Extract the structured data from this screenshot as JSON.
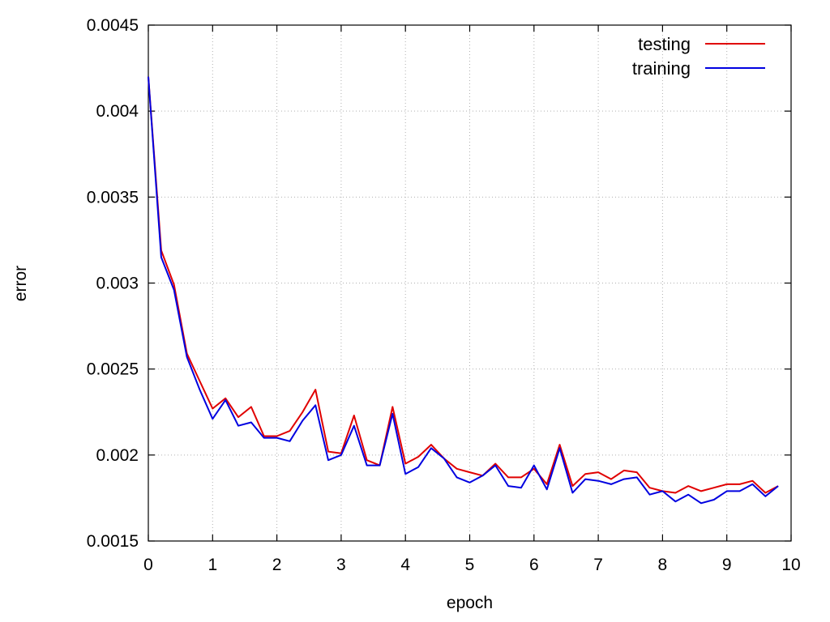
{
  "chart_data": {
    "type": "line",
    "title": "",
    "xlabel": "epoch",
    "ylabel": "error",
    "xlim": [
      0,
      10
    ],
    "ylim": [
      0.0015,
      0.0045
    ],
    "grid": true,
    "legend_position": "top-right",
    "x_ticks": [
      "0",
      "1",
      "2",
      "3",
      "4",
      "5",
      "6",
      "7",
      "8",
      "9",
      "10"
    ],
    "y_ticks": [
      "0.0015",
      "0.002",
      "0.0025",
      "0.003",
      "0.0035",
      "0.004",
      "0.0045"
    ],
    "x": [
      0,
      0.2,
      0.4,
      0.6,
      0.8,
      1.0,
      1.2,
      1.4,
      1.6,
      1.8,
      2.0,
      2.2,
      2.4,
      2.6,
      2.8,
      3.0,
      3.2,
      3.4,
      3.6,
      3.8,
      4.0,
      4.2,
      4.4,
      4.6,
      4.8,
      5.0,
      5.2,
      5.4,
      5.6,
      5.8,
      6.0,
      6.2,
      6.4,
      6.6,
      6.8,
      7.0,
      7.2,
      7.4,
      7.6,
      7.8,
      8.0,
      8.2,
      8.4,
      8.6,
      8.8,
      9.0,
      9.2,
      9.4,
      9.6,
      9.8
    ],
    "series": [
      {
        "name": "testing",
        "color": "#e00000",
        "values": [
          0.0042,
          0.00319,
          0.00299,
          0.00259,
          0.00243,
          0.00227,
          0.00233,
          0.00222,
          0.00228,
          0.00211,
          0.00211,
          0.00214,
          0.00225,
          0.00238,
          0.00202,
          0.00201,
          0.00223,
          0.00197,
          0.00194,
          0.00228,
          0.00195,
          0.00199,
          0.00206,
          0.00198,
          0.00192,
          0.0019,
          0.00188,
          0.00195,
          0.00187,
          0.00187,
          0.00192,
          0.00183,
          0.00206,
          0.00182,
          0.00189,
          0.0019,
          0.00186,
          0.00191,
          0.0019,
          0.00181,
          0.00179,
          0.00178,
          0.00182,
          0.00179,
          0.00181,
          0.00183,
          0.00183,
          0.00185,
          0.00178,
          0.00182
        ]
      },
      {
        "name": "training",
        "color": "#0000e0",
        "values": [
          0.0042,
          0.00315,
          0.00296,
          0.00257,
          0.00238,
          0.00221,
          0.00232,
          0.00217,
          0.00219,
          0.0021,
          0.0021,
          0.00208,
          0.0022,
          0.00229,
          0.00197,
          0.002,
          0.00217,
          0.00194,
          0.00194,
          0.00224,
          0.00189,
          0.00193,
          0.00204,
          0.00198,
          0.00187,
          0.00184,
          0.00188,
          0.00194,
          0.00182,
          0.00181,
          0.00194,
          0.0018,
          0.00204,
          0.00178,
          0.00186,
          0.00185,
          0.00183,
          0.00186,
          0.00187,
          0.00177,
          0.00179,
          0.00173,
          0.00177,
          0.00172,
          0.00174,
          0.00179,
          0.00179,
          0.00183,
          0.00176,
          0.00182
        ]
      }
    ]
  }
}
